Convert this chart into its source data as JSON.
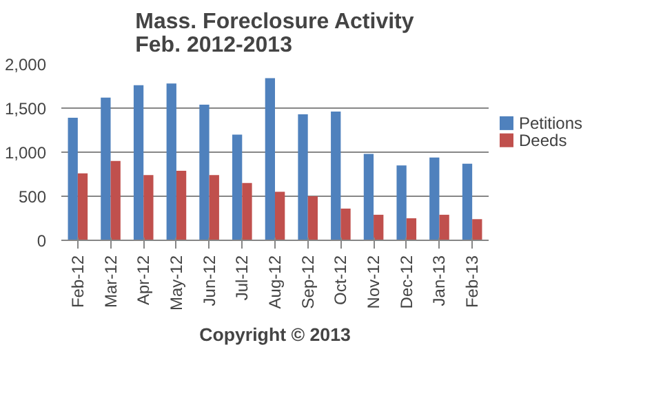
{
  "chart_data": {
    "type": "bar",
    "title": "Mass. Foreclosure Activity\nFeb. 2012-2013",
    "categories": [
      "Feb-12",
      "Mar-12",
      "Apr-12",
      "May-12",
      "Jun-12",
      "Jul-12",
      "Aug-12",
      "Sep-12",
      "Oct-12",
      "Nov-12",
      "Dec-12",
      "Jan-13",
      "Feb-13"
    ],
    "series": [
      {
        "name": "Petitions",
        "color": "#4f81bd",
        "values": [
          1390,
          1620,
          1760,
          1780,
          1540,
          1200,
          1840,
          1430,
          1460,
          980,
          850,
          940,
          870
        ]
      },
      {
        "name": "Deeds",
        "color": "#c0504d",
        "values": [
          760,
          900,
          740,
          790,
          740,
          650,
          550,
          500,
          360,
          290,
          250,
          290,
          240
        ]
      }
    ],
    "ylim": [
      0,
      2000
    ],
    "yticks": [
      {
        "value": 0,
        "label": "0"
      },
      {
        "value": 500,
        "label": "500"
      },
      {
        "value": 1000,
        "label": "1,000"
      },
      {
        "value": 1500,
        "label": "1,500"
      },
      {
        "value": 2000,
        "label": "2,000"
      }
    ],
    "grid": "y",
    "legend": "right",
    "annotations": [
      "Copyright © 2013"
    ]
  }
}
